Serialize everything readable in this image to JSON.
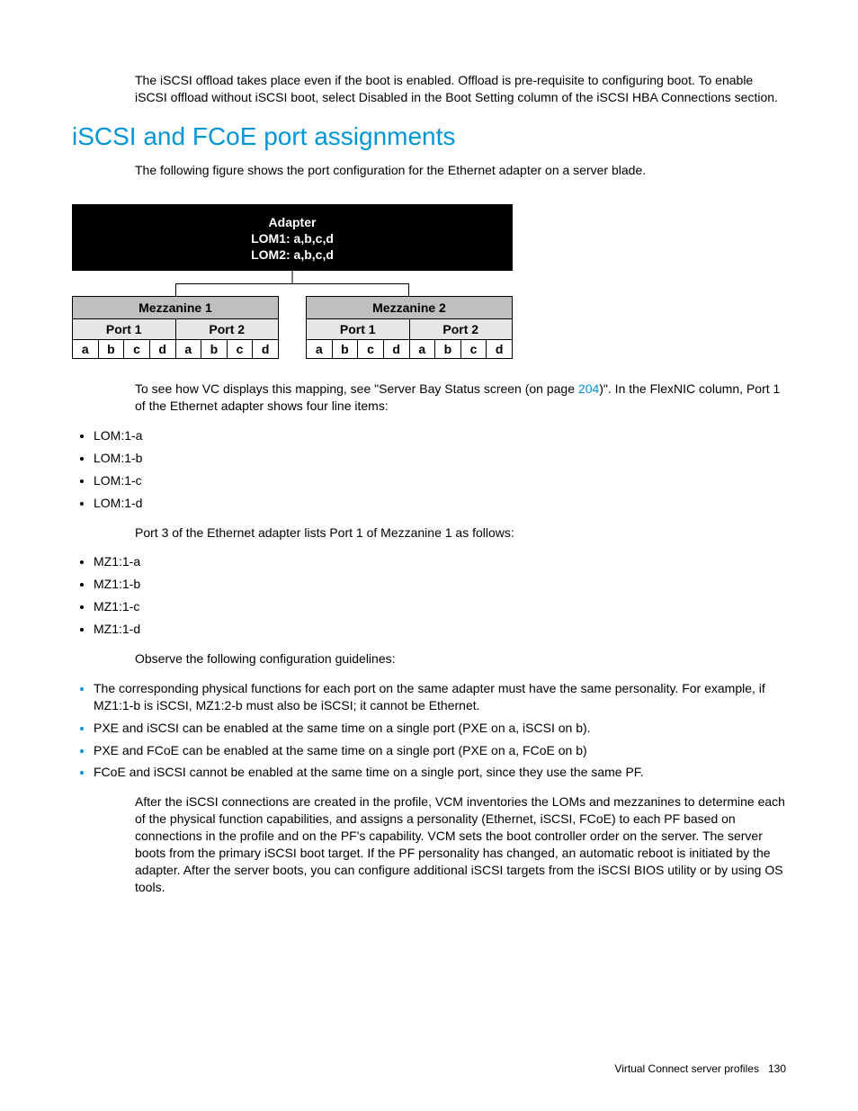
{
  "intro_para": "The iSCSI offload takes place even if the boot is enabled. Offload is pre-requisite to configuring boot. To enable iSCSI offload without iSCSI boot, select Disabled in the Boot Setting column of the iSCSI HBA Connections section.",
  "heading": "iSCSI and FCoE port assignments",
  "para_after_heading": "The following figure shows the port configuration for the Ethernet adapter on a server blade.",
  "adapter": {
    "title": "Adapter",
    "lom1": "LOM1: a,b,c,d",
    "lom2": "LOM2: a,b,c,d",
    "mezz": [
      {
        "name": "Mezzanine 1",
        "ports": [
          "Port 1",
          "Port 2"
        ],
        "letters": [
          "a",
          "b",
          "c",
          "d",
          "a",
          "b",
          "c",
          "d"
        ]
      },
      {
        "name": "Mezzanine 2",
        "ports": [
          "Port 1",
          "Port 2"
        ],
        "letters": [
          "a",
          "b",
          "c",
          "d",
          "a",
          "b",
          "c",
          "d"
        ]
      }
    ]
  },
  "mapping_para_pre": "To see how VC displays this mapping, see \"Server Bay Status screen (on page ",
  "mapping_link": "204",
  "mapping_para_post": ")\". In the FlexNIC column, Port 1 of the Ethernet adapter shows four line items:",
  "lom_list": [
    "LOM:1-a",
    "LOM:1-b",
    "LOM:1-c",
    "LOM:1-d"
  ],
  "port3_para": "Port 3 of the Ethernet adapter lists Port 1 of Mezzanine 1 as follows:",
  "mz_list": [
    "MZ1:1-a",
    "MZ1:1-b",
    "MZ1:1-c",
    "MZ1:1-d"
  ],
  "guidelines_para": "Observe the following configuration guidelines:",
  "guidelines_list": [
    "The corresponding physical functions for each port on the same adapter must have the same personality. For example, if MZ1:1-b is iSCSI, MZ1:2-b must also be iSCSI; it cannot be Ethernet.",
    "PXE and iSCSI can be enabled at the same time on a single port (PXE on a, iSCSI on b).",
    "PXE and FCoE can be enabled at the same time on a single port (PXE on a, FCoE on b)",
    "FCoE and iSCSI cannot be enabled at the same time on a single port, since they use the same PF."
  ],
  "closing_para": "After the iSCSI connections are created in the profile, VCM inventories the LOMs and mezzanines to determine each of the physical function capabilities, and assigns a personality (Ethernet, iSCSI, FCoE) to each PF based on connections in the profile and on the PF's capability. VCM sets the boot controller order on the server. The server boots from the primary iSCSI boot target. If the PF personality has changed, an automatic reboot is initiated by the adapter. After the server boots, you can configure additional iSCSI targets from the iSCSI BIOS utility or by using OS tools.",
  "footer_text": "Virtual Connect server profiles",
  "footer_page": "130",
  "colors": {
    "accent": "#0096d6",
    "mezz_header_bg": "#bfbfbf",
    "port_bg": "#e6e6e6"
  }
}
